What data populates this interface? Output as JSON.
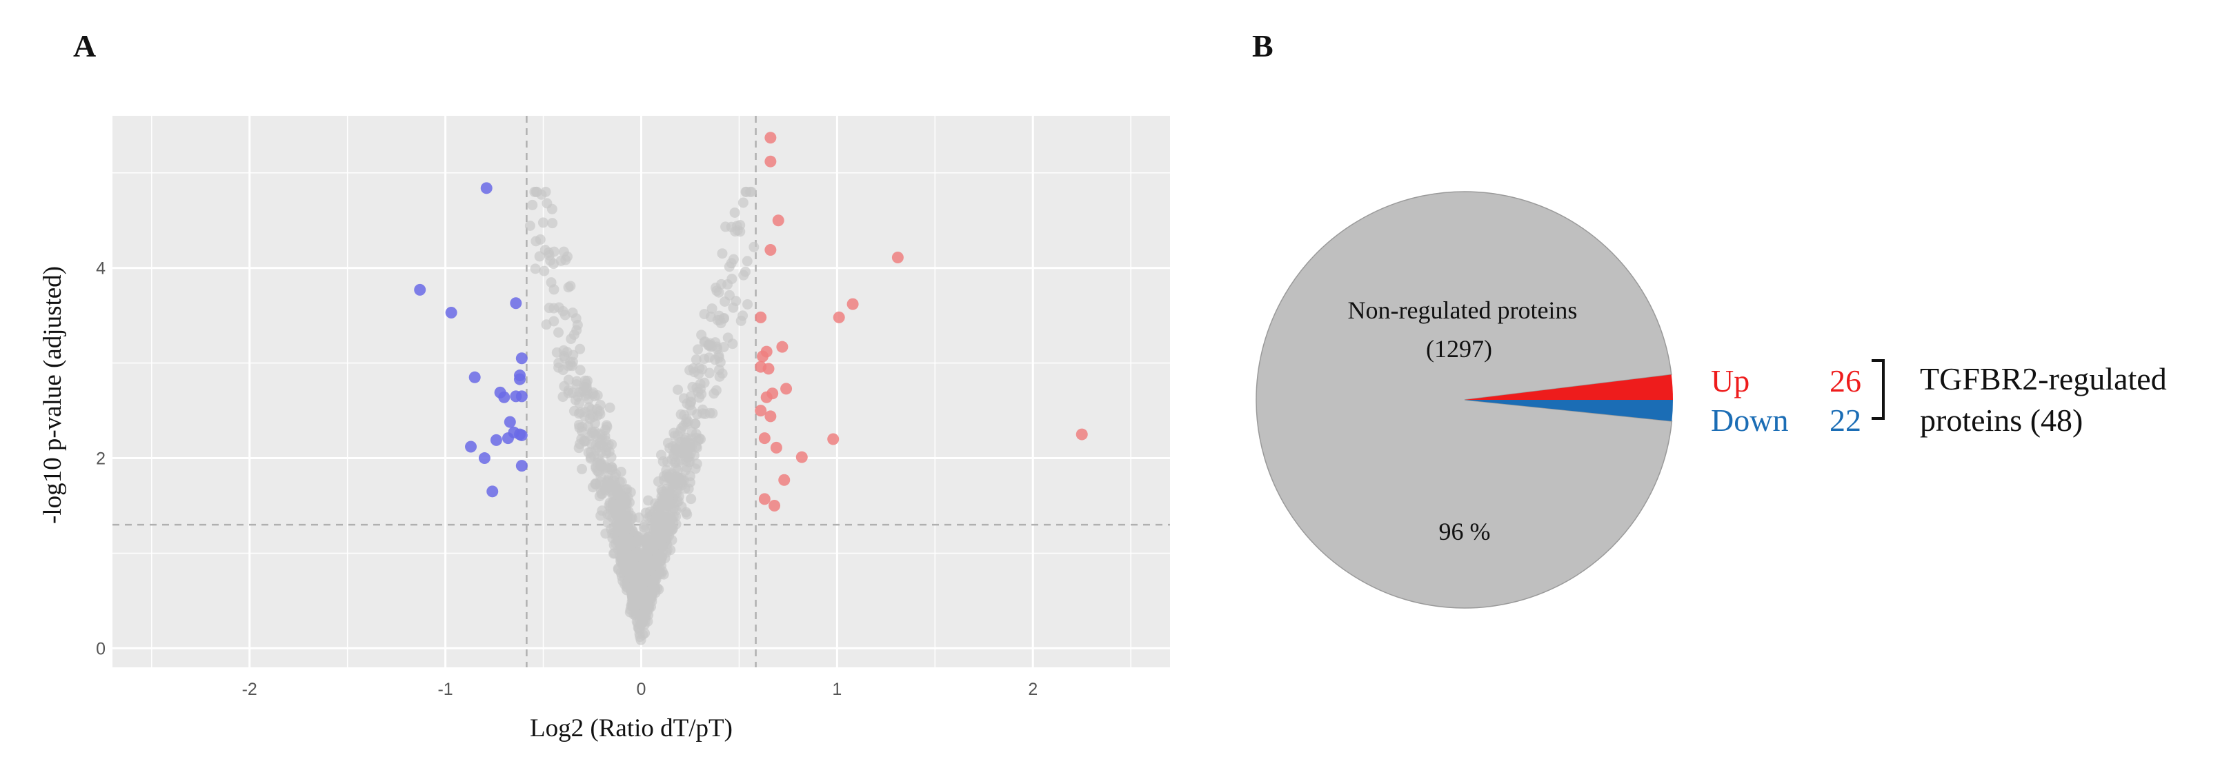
{
  "panels": {
    "a": "A",
    "b": "B"
  },
  "chart_data": [
    {
      "type": "scatter",
      "xlabel": "Log2 (Ratio dT/pT)",
      "ylabel": "-log10 p-value (adjusted)",
      "xlim": [
        -2.7,
        2.7
      ],
      "ylim": [
        -0.2,
        5.6
      ],
      "x_ticks": [
        -2,
        -1,
        0,
        1,
        2
      ],
      "y_ticks": [
        0,
        2,
        4
      ],
      "grid": true,
      "thresholds": {
        "fold_change": [
          -0.585,
          0.585
        ],
        "neg_log10_p": 1.3
      },
      "colors": {
        "background": "#ebebeb",
        "grid": "#ffffff",
        "down": "#6a6ae6",
        "up": "#ee8080",
        "non_regulated": "#c6c6c6",
        "threshold_line": "#b0b0b0"
      },
      "series": [
        {
          "name": "Down",
          "points": [
            [
              -1.13,
              3.77
            ],
            [
              -0.97,
              3.53
            ],
            [
              -0.79,
              4.84
            ],
            [
              -0.85,
              2.85
            ],
            [
              -0.64,
              3.63
            ],
            [
              -0.61,
              3.05
            ],
            [
              -0.62,
              2.87
            ],
            [
              -0.64,
              2.65
            ],
            [
              -0.61,
              2.65
            ],
            [
              -0.72,
              2.69
            ],
            [
              -0.7,
              2.64
            ],
            [
              -0.67,
              2.38
            ],
            [
              -0.65,
              2.27
            ],
            [
              -0.68,
              2.21
            ],
            [
              -0.62,
              2.25
            ],
            [
              -0.61,
              2.24
            ],
            [
              -0.74,
              2.19
            ],
            [
              -0.87,
              2.12
            ],
            [
              -0.8,
              2.0
            ],
            [
              -0.61,
              1.92
            ],
            [
              -0.76,
              1.65
            ],
            [
              -0.62,
              2.83
            ]
          ]
        },
        {
          "name": "Up",
          "points": [
            [
              0.66,
              5.37
            ],
            [
              0.66,
              5.12
            ],
            [
              0.7,
              4.5
            ],
            [
              0.66,
              4.19
            ],
            [
              1.31,
              4.11
            ],
            [
              1.08,
              3.62
            ],
            [
              0.61,
              3.48
            ],
            [
              1.01,
              3.48
            ],
            [
              0.72,
              3.17
            ],
            [
              0.64,
              3.12
            ],
            [
              0.62,
              3.07
            ],
            [
              0.61,
              2.96
            ],
            [
              0.65,
              2.94
            ],
            [
              0.74,
              2.73
            ],
            [
              0.67,
              2.68
            ],
            [
              0.64,
              2.64
            ],
            [
              0.61,
              2.5
            ],
            [
              0.66,
              2.44
            ],
            [
              0.63,
              2.21
            ],
            [
              0.98,
              2.2
            ],
            [
              2.25,
              2.25
            ],
            [
              0.69,
              2.11
            ],
            [
              0.82,
              2.01
            ],
            [
              0.73,
              1.77
            ],
            [
              0.63,
              1.57
            ],
            [
              0.68,
              1.5
            ]
          ]
        }
      ]
    },
    {
      "type": "pie",
      "slices": [
        {
          "name": "Non-regulated proteins",
          "count": 1297,
          "percent_label": "96 %",
          "color": "#bfbfbf"
        },
        {
          "name": "Up",
          "count": 26,
          "color": "#ee1c1c"
        },
        {
          "name": "Down",
          "count": 22,
          "color": "#1b6db5"
        }
      ],
      "labels": {
        "nonreg_name": "Non-regulated proteins",
        "nonreg_count": "(1297)",
        "percent": "96 %",
        "up_label": "Up",
        "up_count": "26",
        "down_label": "Down",
        "down_count": "22",
        "group_line1": "TGFBR2-regulated",
        "group_line2": "proteins (48)"
      }
    }
  ]
}
